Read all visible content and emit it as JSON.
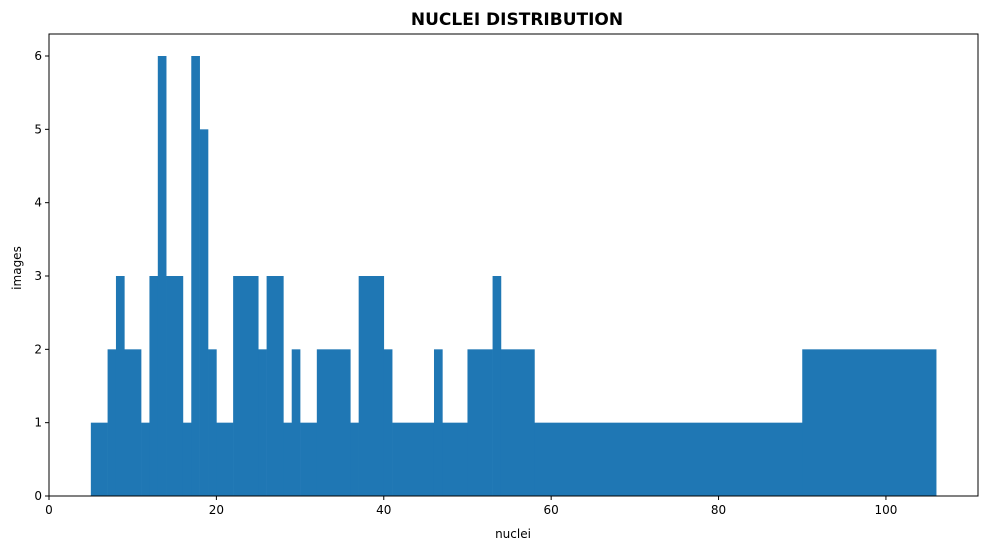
{
  "chart_data": {
    "type": "bar",
    "title": "NUCLEI DISTRIBUTION",
    "xlabel": "nuclei",
    "ylabel": "images",
    "xlim": [
      0,
      111
    ],
    "ylim": [
      0,
      6.3
    ],
    "xticks": [
      0,
      20,
      40,
      60,
      80,
      100
    ],
    "yticks": [
      0,
      1,
      2,
      3,
      4,
      5,
      6
    ],
    "grid": false,
    "color": "#1f77b4",
    "bins": [
      {
        "x0": 5,
        "x1": 7,
        "value": 1
      },
      {
        "x0": 7,
        "x1": 8,
        "value": 2
      },
      {
        "x0": 8,
        "x1": 9,
        "value": 3
      },
      {
        "x0": 9,
        "x1": 11,
        "value": 2
      },
      {
        "x0": 11,
        "x1": 12,
        "value": 1
      },
      {
        "x0": 12,
        "x1": 13,
        "value": 3
      },
      {
        "x0": 13,
        "x1": 14,
        "value": 6
      },
      {
        "x0": 14,
        "x1": 16,
        "value": 3
      },
      {
        "x0": 16,
        "x1": 17,
        "value": 1
      },
      {
        "x0": 17,
        "x1": 18,
        "value": 6
      },
      {
        "x0": 18,
        "x1": 19,
        "value": 5
      },
      {
        "x0": 19,
        "x1": 20,
        "value": 2
      },
      {
        "x0": 20,
        "x1": 22,
        "value": 1
      },
      {
        "x0": 22,
        "x1": 25,
        "value": 3
      },
      {
        "x0": 25,
        "x1": 26,
        "value": 2
      },
      {
        "x0": 26,
        "x1": 28,
        "value": 3
      },
      {
        "x0": 28,
        "x1": 29,
        "value": 1
      },
      {
        "x0": 29,
        "x1": 30,
        "value": 2
      },
      {
        "x0": 30,
        "x1": 32,
        "value": 1
      },
      {
        "x0": 32,
        "x1": 36,
        "value": 2
      },
      {
        "x0": 36,
        "x1": 37,
        "value": 1
      },
      {
        "x0": 37,
        "x1": 40,
        "value": 3
      },
      {
        "x0": 40,
        "x1": 41,
        "value": 2
      },
      {
        "x0": 41,
        "x1": 46,
        "value": 1
      },
      {
        "x0": 46,
        "x1": 47,
        "value": 2
      },
      {
        "x0": 47,
        "x1": 50,
        "value": 1
      },
      {
        "x0": 50,
        "x1": 53,
        "value": 2
      },
      {
        "x0": 53,
        "x1": 54,
        "value": 3
      },
      {
        "x0": 54,
        "x1": 58,
        "value": 2
      },
      {
        "x0": 58,
        "x1": 90,
        "value": 1
      },
      {
        "x0": 90,
        "x1": 106,
        "value": 2
      }
    ]
  }
}
